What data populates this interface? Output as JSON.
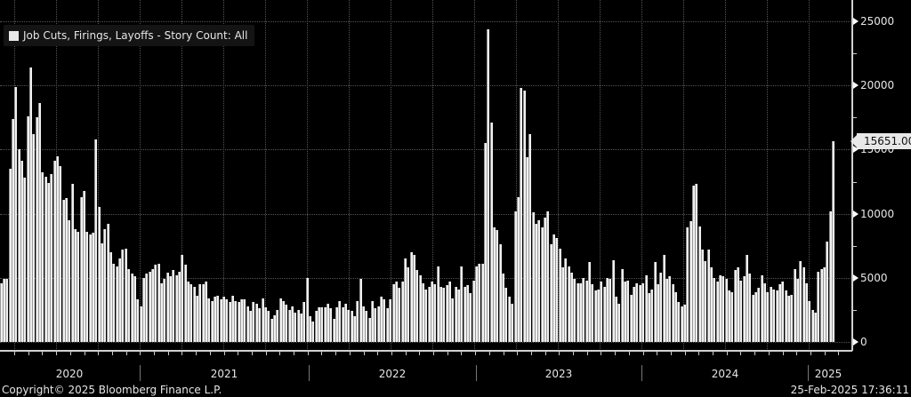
{
  "legend": {
    "label": "Job Cuts, Firings, Layoffs - Story Count: All",
    "swatch_color": "#e8e8e8"
  },
  "last_value_label": "15651.00",
  "footer": {
    "copyright": "Copyright© 2025 Bloomberg Finance L.P.",
    "timestamp": "25-Feb-2025 17:36:11"
  },
  "y_axis": {
    "ticks": [
      "25000",
      "20000",
      "15000",
      "10000",
      "5000",
      "0"
    ]
  },
  "x_axis": {
    "years": [
      "2020",
      "2021",
      "2022",
      "2023",
      "2024",
      "2025"
    ]
  },
  "colors": {
    "background": "#000000",
    "bar": "#f0f0f0",
    "grid": "#555555",
    "axis": "#d0d0d0"
  },
  "chart_data": {
    "type": "bar",
    "title": "Job Cuts, Firings, Layoffs - Story Count: All",
    "xlabel": "",
    "ylabel": "",
    "ylim": [
      0,
      26000
    ],
    "yticks": [
      0,
      5000,
      10000,
      15000,
      20000,
      25000
    ],
    "x_tick_labels": [
      "2020",
      "2021",
      "2022",
      "2023",
      "2024",
      "2025"
    ],
    "grid": true,
    "legend_position": "top-left",
    "frequency": "weekly",
    "last_value": 15651.0,
    "series": [
      {
        "name": "Job Cuts, Firings, Layoffs - Story Count: All",
        "values": [
          4600,
          4900,
          4900,
          13500,
          17400,
          19900,
          15000,
          14100,
          12800,
          17600,
          21400,
          16200,
          17500,
          18600,
          13200,
          12900,
          12400,
          13100,
          14100,
          14500,
          13700,
          11100,
          11200,
          9500,
          12300,
          8800,
          8600,
          11300,
          11800,
          8600,
          8400,
          8500,
          15800,
          10500,
          7700,
          8800,
          9200,
          7000,
          6100,
          5900,
          6500,
          7200,
          7300,
          5700,
          5300,
          5100,
          3300,
          2800,
          5000,
          5300,
          5500,
          5700,
          6000,
          6100,
          4600,
          4900,
          5400,
          5100,
          5600,
          5200,
          5500,
          6800,
          6000,
          4700,
          4500,
          4300,
          3600,
          4500,
          4500,
          4700,
          3400,
          3200,
          3500,
          3600,
          3300,
          3500,
          3300,
          3100,
          3600,
          3200,
          3100,
          3300,
          3300,
          2800,
          2400,
          3100,
          3000,
          2600,
          3400,
          2700,
          2400,
          1800,
          2100,
          2500,
          3400,
          3200,
          2900,
          2500,
          2800,
          2300,
          2500,
          2200,
          3100,
          5000,
          2000,
          1600,
          2400,
          2700,
          2700,
          2700,
          3000,
          2600,
          1800,
          2700,
          3200,
          2700,
          3000,
          2500,
          2400,
          2000,
          3200,
          4900,
          2800,
          2400,
          1900,
          3200,
          2600,
          2800,
          3500,
          3300,
          2600,
          3300,
          4500,
          4700,
          4200,
          4700,
          6500,
          5800,
          7000,
          6800,
          5600,
          5200,
          4600,
          4100,
          4300,
          4700,
          4500,
          5900,
          4300,
          4200,
          4400,
          4700,
          3400,
          4300,
          4100,
          5900,
          4300,
          4400,
          3800,
          4800,
          5900,
          6100,
          6100,
          15500,
          24400,
          17100,
          8900,
          8700,
          7600,
          5300,
          4200,
          3500,
          3000,
          10200,
          11300,
          19800,
          19600,
          14400,
          16200,
          10100,
          9200,
          9500,
          8900,
          9700,
          10200,
          7600,
          8400,
          8100,
          7300,
          5800,
          6500,
          5900,
          5400,
          4900,
          4600,
          4600,
          5000,
          4800,
          6200,
          4500,
          4000,
          4100,
          4700,
          4300,
          5000,
          4900,
          6400,
          3500,
          3000,
          5700,
          4700,
          4800,
          3700,
          4300,
          4600,
          4400,
          4600,
          5200,
          3800,
          4100,
          6200,
          4500,
          5400,
          6800,
          4900,
          5100,
          4500,
          3900,
          3100,
          2800,
          2900,
          8900,
          9400,
          12200,
          12300,
          9000,
          7200,
          6300,
          7200,
          5800,
          5000,
          4700,
          5200,
          5100,
          4900,
          4000,
          3900,
          5600,
          5800,
          4800,
          5100,
          6800,
          5300,
          3700,
          3900,
          4200,
          5200,
          4600,
          3900,
          4300,
          4100,
          4000,
          4500,
          4700,
          4000,
          3600,
          3700,
          5700,
          4900,
          6300,
          5800,
          4600,
          3200,
          2500,
          2300,
          5500,
          5700,
          5800,
          7800,
          10200,
          15651
        ]
      }
    ]
  }
}
